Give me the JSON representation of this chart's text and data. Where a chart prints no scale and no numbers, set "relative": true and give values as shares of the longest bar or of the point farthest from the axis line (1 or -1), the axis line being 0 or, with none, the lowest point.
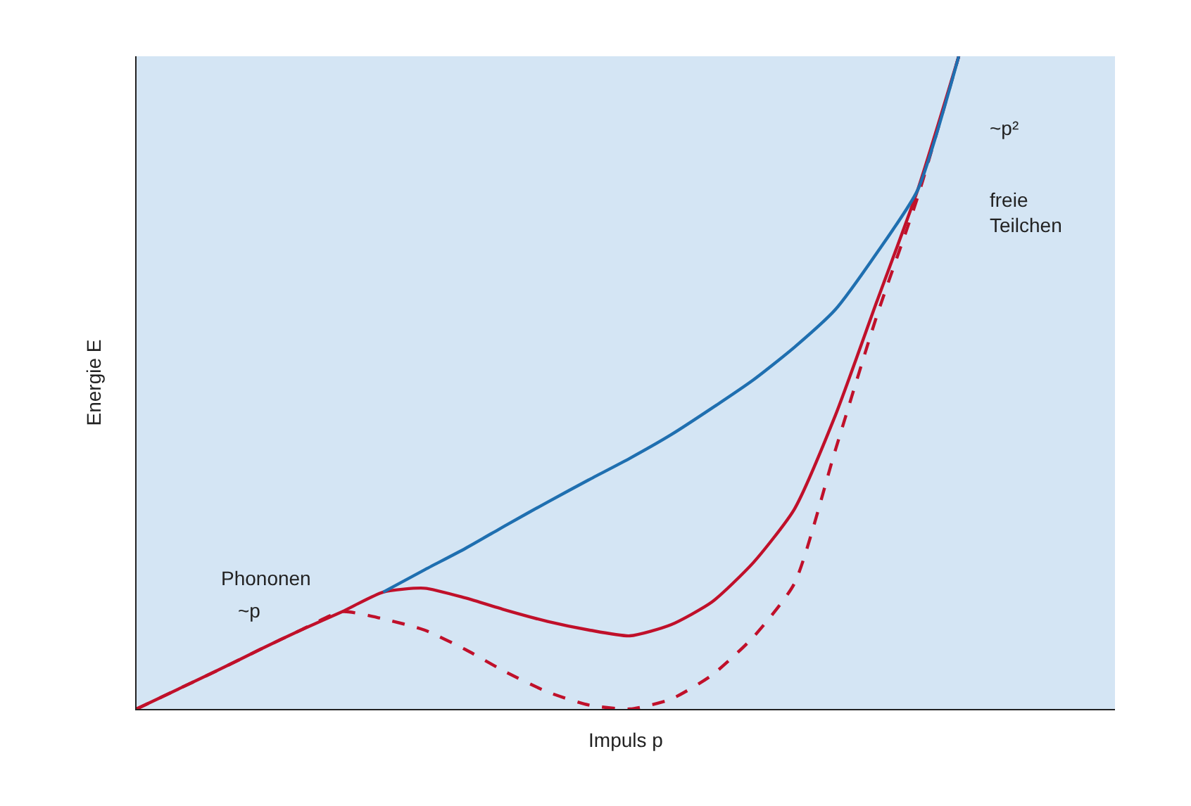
{
  "chart_data": {
    "type": "line",
    "relative": true,
    "xlabel": "Impuls p",
    "ylabel": "Energie E",
    "categories": [
      null,
      null,
      null,
      null,
      null,
      null,
      null,
      null,
      null,
      null,
      null,
      null,
      null,
      null,
      null,
      null,
      null,
      null,
      null,
      null,
      null
    ],
    "series": [
      {
        "color": "#c0102a",
        "values": [
          0,
          0.03,
          0.06,
          0.091,
          0.121,
          0.149,
          0.179,
          0.185,
          0.17,
          0.151,
          0.134,
          0.121,
          0.112,
          0.129,
          0.164,
          0.224,
          0.306,
          0.45,
          0.623,
          0.795,
          1
        ]
      },
      {
        "color": "#c0102a",
        "line_style": "dashed",
        "values": [
          0,
          0.03,
          0.06,
          0.091,
          0.121,
          0.149,
          0.138,
          0.121,
          0.091,
          0.056,
          0.026,
          0.006,
          0,
          0.015,
          0.052,
          0.11,
          0.192,
          0.397,
          0.601,
          0.784,
          1
        ]
      },
      {
        "color": "#1f6fb0",
        "values": [
          null,
          null,
          null,
          null,
          null,
          null,
          0.179,
          0.213,
          0.246,
          0.282,
          0.317,
          0.351,
          0.384,
          0.42,
          0.461,
          0.504,
          0.554,
          0.612,
          0.698,
          0.795,
          1
        ]
      }
    ],
    "annotations": [
      "Phononen",
      "~p",
      "~p²",
      "freie\nTeilchen"
    ],
    "grid": false,
    "legend": false,
    "marker": "none",
    "line_style": "solid"
  }
}
